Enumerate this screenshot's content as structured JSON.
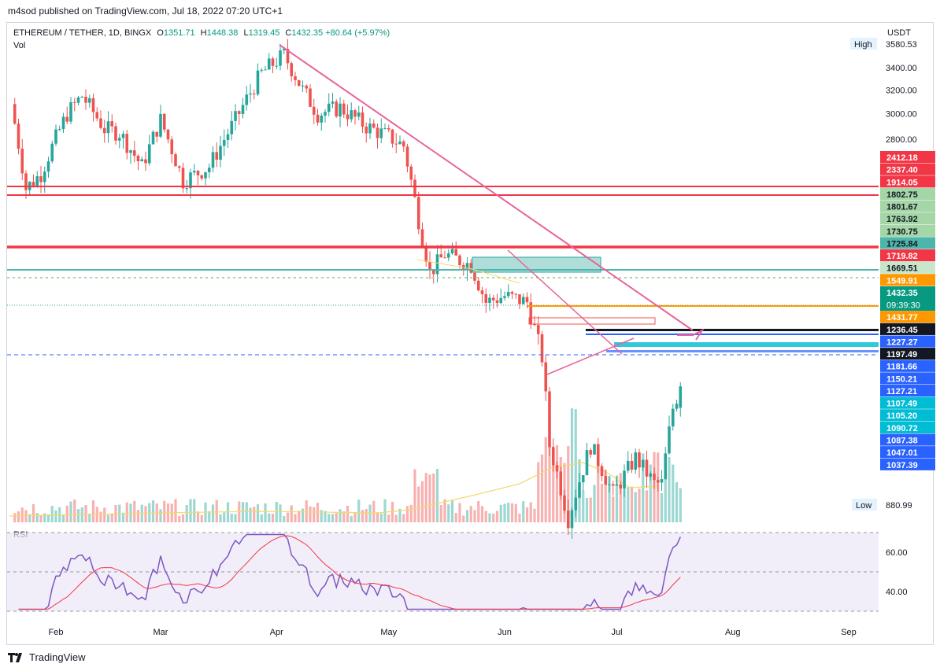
{
  "header": {
    "published": "m4sod published on TradingView.com, Jul 18, 2022 07:20 UTC+1"
  },
  "legend": {
    "symbol": "ETHEREUM / TETHER, 1D, BINGX",
    "open_key": "O",
    "open": "1351.71",
    "high_key": "H",
    "high": "1448.38",
    "low_key": "L",
    "low": "1319.45",
    "close_key": "C",
    "close": "1432.35",
    "change": "+80.64 (+5.97%)",
    "vol_label": "Vol",
    "rsi_label": "RSI",
    "currency": "USDT"
  },
  "footer": {
    "brand": "TradingView"
  },
  "colors": {
    "up": "#26a69a",
    "down": "#ef5350",
    "trendline": "#e8649b",
    "resistance": "#f23645",
    "rsi": "#7e57c2",
    "rsi_ma": "#f23645",
    "vol_ma": "#f5d96b",
    "orange": "#ff9800",
    "blue_dashed": "#2962ff"
  },
  "chart_data": {
    "type": "candlestick",
    "title": "ETHEREUM / TETHER, 1D, BINGX",
    "ylabel": "USDT",
    "yscale": "log",
    "ylim": [
      880.99,
      3580.53
    ],
    "y_ticks": [
      "3400.00",
      "3200.00",
      "3000.00",
      "2800.00"
    ],
    "x_ticks": [
      "Feb",
      "Mar",
      "Apr",
      "May",
      "Jun",
      "Jul",
      "Aug",
      "Sep"
    ],
    "high_marker": {
      "label": "High",
      "value": "3580.53"
    },
    "low_marker": {
      "label": "Low",
      "value": "880.99"
    },
    "last": {
      "close": "1432.35",
      "countdown": "09:39:30"
    },
    "price_labels": [
      {
        "value": "2412.18",
        "color": "#f23645"
      },
      {
        "value": "2337.40",
        "color": "#f23645"
      },
      {
        "value": "1914.05",
        "color": "#f23645"
      },
      {
        "value": "1802.75",
        "color": "#a5d6a7"
      },
      {
        "value": "1801.67",
        "color": "#a5d6a7"
      },
      {
        "value": "1763.92",
        "color": "#a5d6a7"
      },
      {
        "value": "1730.75",
        "color": "#a5d6a7"
      },
      {
        "value": "1725.84",
        "color": "#4db6ac"
      },
      {
        "value": "1719.82",
        "color": "#f23645"
      },
      {
        "value": "1669.51",
        "color": "#c8e6c9"
      },
      {
        "value": "1549.91",
        "color": "#ff9800"
      },
      {
        "value": "1431.77",
        "color": "#ff9800"
      },
      {
        "value": "1236.45",
        "color": "#131722"
      },
      {
        "value": "1227.27",
        "color": "#2962ff"
      },
      {
        "value": "1197.49",
        "color": "#131722"
      },
      {
        "value": "1181.66",
        "color": "#2962ff"
      },
      {
        "value": "1150.21",
        "color": "#2962ff"
      },
      {
        "value": "1127.21",
        "color": "#2962ff"
      },
      {
        "value": "1107.49",
        "color": "#00bcd4"
      },
      {
        "value": "1105.20",
        "color": "#00bcd4"
      },
      {
        "value": "1090.72",
        "color": "#00bcd4"
      },
      {
        "value": "1087.38",
        "color": "#2962ff"
      },
      {
        "value": "1047.01",
        "color": "#2962ff"
      },
      {
        "value": "1037.39",
        "color": "#2962ff"
      }
    ],
    "rsi_levels": [
      "60.00",
      "40.00"
    ],
    "candle_outline": [
      {
        "date": "2022-01-20",
        "close": 3080
      },
      {
        "date": "2022-01-24",
        "close": 2450
      },
      {
        "date": "2022-01-28",
        "close": 2550
      },
      {
        "date": "2022-02-04",
        "close": 3000
      },
      {
        "date": "2022-02-08",
        "close": 3150
      },
      {
        "date": "2022-02-14",
        "close": 2880
      },
      {
        "date": "2022-02-18",
        "close": 2850
      },
      {
        "date": "2022-02-24",
        "close": 2600
      },
      {
        "date": "2022-03-01",
        "close": 2950
      },
      {
        "date": "2022-03-07",
        "close": 2500
      },
      {
        "date": "2022-03-14",
        "close": 2600
      },
      {
        "date": "2022-03-21",
        "close": 2950
      },
      {
        "date": "2022-03-28",
        "close": 3350
      },
      {
        "date": "2022-04-03",
        "close": 3520
      },
      {
        "date": "2022-04-08",
        "close": 3200
      },
      {
        "date": "2022-04-12",
        "close": 3000
      },
      {
        "date": "2022-04-18",
        "close": 3050
      },
      {
        "date": "2022-04-25",
        "close": 2900
      },
      {
        "date": "2022-05-01",
        "close": 2820
      },
      {
        "date": "2022-05-05",
        "close": 2750
      },
      {
        "date": "2022-05-09",
        "close": 2250
      },
      {
        "date": "2022-05-12",
        "close": 1950
      },
      {
        "date": "2022-05-16",
        "close": 2050
      },
      {
        "date": "2022-05-23",
        "close": 1990
      },
      {
        "date": "2022-05-27",
        "close": 1800
      },
      {
        "date": "2022-06-01",
        "close": 1830
      },
      {
        "date": "2022-06-07",
        "close": 1800
      },
      {
        "date": "2022-06-11",
        "close": 1550
      },
      {
        "date": "2022-06-13",
        "close": 1220
      },
      {
        "date": "2022-06-18",
        "close": 1000
      },
      {
        "date": "2022-06-24",
        "close": 1220
      },
      {
        "date": "2022-06-30",
        "close": 1070
      },
      {
        "date": "2022-07-06",
        "close": 1180
      },
      {
        "date": "2022-07-11",
        "close": 1100
      },
      {
        "date": "2022-07-13",
        "close": 1100
      },
      {
        "date": "2022-07-16",
        "close": 1350
      },
      {
        "date": "2022-07-18",
        "close": 1432
      }
    ]
  }
}
